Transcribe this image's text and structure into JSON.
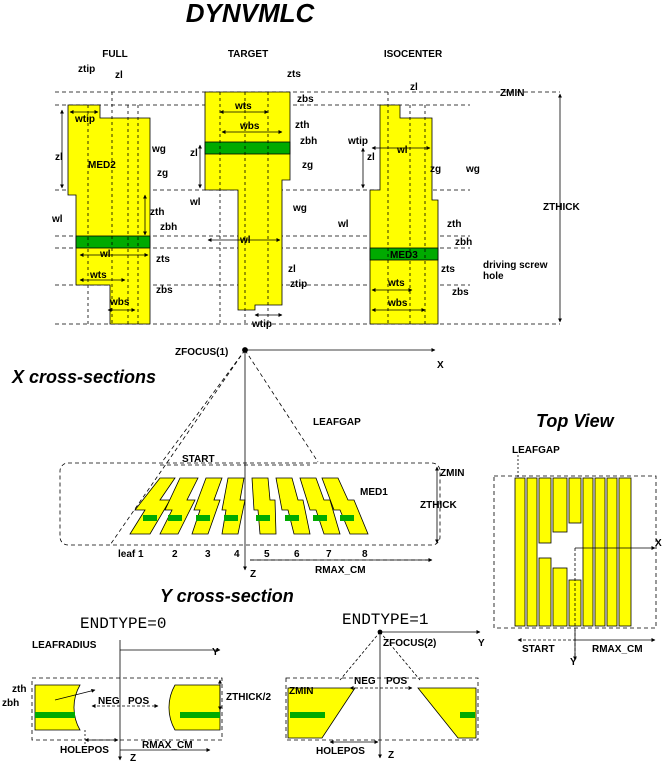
{
  "title": "DYNVMLC",
  "colors": {
    "leaf": "#ffff00",
    "screw": "#00aa00",
    "line": "#000000"
  },
  "top_panels": {
    "full": "FULL",
    "target": "TARGET",
    "isocenter": "ISOCENTER",
    "labels": {
      "zmin": "ZMIN",
      "zthick": "ZTHICK",
      "med2": "MED2",
      "med3": "MED3",
      "driving_screw_1": "driving screw",
      "driving_screw_2": "hole",
      "ztip": "ztip",
      "zl": "zl",
      "wtip": "wtip",
      "wg": "wg",
      "zg": "zg",
      "wl": "wl",
      "zth": "zth",
      "zbh": "zbh",
      "zts": "zts",
      "wts": "wts",
      "wbs": "wbs",
      "zbs": "zbs"
    }
  },
  "x_section": {
    "heading": "X cross-sections",
    "zfocus1": "ZFOCUS(1)",
    "x_axis": "X",
    "z_axis": "Z",
    "leafgap": "LEAFGAP",
    "start": "START",
    "zmin": "ZMIN",
    "zthick": "ZTHICK",
    "med1": "MED1",
    "rmax": "RMAX_CM",
    "leaves": [
      "leaf 1",
      "2",
      "3",
      "4",
      "5",
      "6",
      "7",
      "8"
    ]
  },
  "top_view": {
    "heading": "Top View",
    "leafgap": "LEAFGAP",
    "x_axis": "X",
    "y_axis": "Y",
    "start": "START",
    "rmax": "RMAX_CM"
  },
  "y_section": {
    "heading": "Y cross-section",
    "endtype0": "ENDTYPE=0",
    "endtype1": "ENDTYPE=1",
    "leafradius": "LEAFRADIUS",
    "y_axis": "Y",
    "z_axis": "Z",
    "zth": "zth",
    "zbh": "zbh",
    "neg": "NEG",
    "pos": "POS",
    "zthick_half": "ZTHICK/2",
    "holepos": "HOLEPOS",
    "rmax": "RMAX_CM",
    "zfocus2": "ZFOCUS(2)",
    "zmin": "ZMIN"
  }
}
